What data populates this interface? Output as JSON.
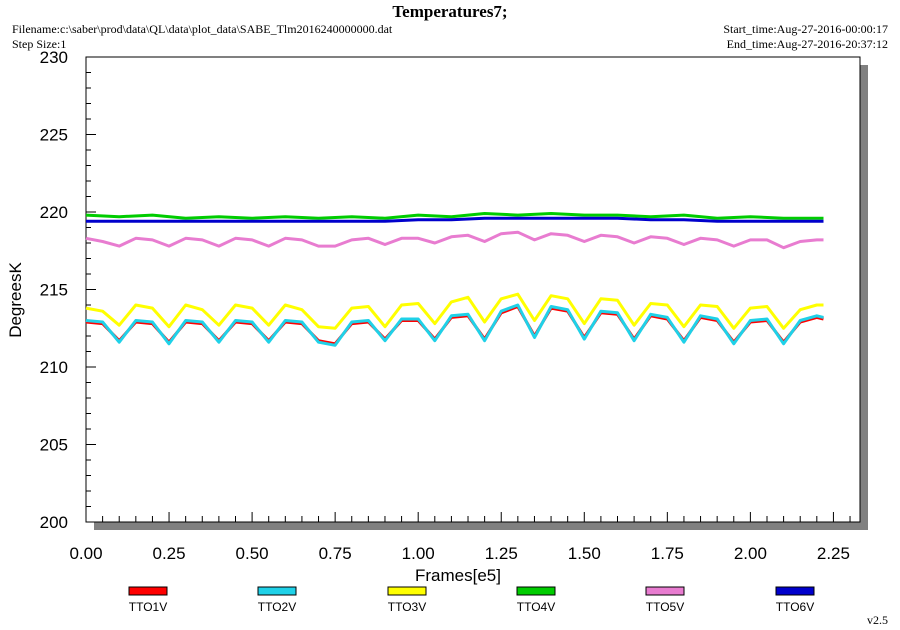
{
  "header": {
    "title": "Temperatures7;",
    "filename": "Filename:c:\\saber\\prod\\data\\QL\\data\\plot_data\\SABE_Tlm2016240000000.dat",
    "step_size": "Step Size:1",
    "start_time": "Start_time:Aug-27-2016-00:00:17",
    "end_time": "End_time:Aug-27-2016-20:37:12"
  },
  "version": "v2.5",
  "chart_data": {
    "type": "line",
    "title": "Temperatures7;",
    "xlabel": "Frames[e5]",
    "ylabel": "DegreesK",
    "xlim": [
      0,
      2.33
    ],
    "ylim": [
      200,
      230
    ],
    "x_ticks": [
      "0.00",
      "0.25",
      "0.50",
      "0.75",
      "1.00",
      "1.25",
      "1.50",
      "1.75",
      "2.00",
      "2.25"
    ],
    "y_ticks": [
      "200",
      "205",
      "210",
      "215",
      "220",
      "225",
      "230"
    ],
    "grid": false,
    "legend_position": "bottom",
    "colors": {
      "background": "#ffffff",
      "plot_background": "#ffffff",
      "shadow": "#808080"
    },
    "series": [
      {
        "name": "TTO1V",
        "color": "#ff0000",
        "x": [
          0.0,
          0.05,
          0.1,
          0.15,
          0.2,
          0.25,
          0.3,
          0.35,
          0.4,
          0.45,
          0.5,
          0.55,
          0.6,
          0.65,
          0.7,
          0.75,
          0.8,
          0.85,
          0.9,
          0.95,
          1.0,
          1.05,
          1.1,
          1.15,
          1.2,
          1.25,
          1.3,
          1.35,
          1.4,
          1.45,
          1.5,
          1.55,
          1.6,
          1.65,
          1.7,
          1.75,
          1.8,
          1.85,
          1.9,
          1.95,
          2.0,
          2.05,
          2.1,
          2.15,
          2.2,
          2.22
        ],
        "values": [
          212.9,
          212.8,
          211.7,
          212.9,
          212.8,
          211.6,
          212.9,
          212.8,
          211.7,
          212.9,
          212.8,
          211.7,
          212.9,
          212.8,
          211.7,
          211.5,
          212.8,
          212.9,
          211.8,
          213.0,
          213.0,
          211.8,
          213.2,
          213.3,
          211.8,
          213.5,
          213.9,
          212.0,
          213.8,
          213.6,
          211.9,
          213.5,
          213.4,
          211.8,
          213.3,
          213.1,
          211.7,
          213.2,
          213.0,
          211.6,
          212.9,
          213.0,
          211.6,
          212.9,
          213.2,
          213.1
        ]
      },
      {
        "name": "TTO2V",
        "color": "#1fd1e8",
        "x": [
          0.0,
          0.05,
          0.1,
          0.15,
          0.2,
          0.25,
          0.3,
          0.35,
          0.4,
          0.45,
          0.5,
          0.55,
          0.6,
          0.65,
          0.7,
          0.75,
          0.8,
          0.85,
          0.9,
          0.95,
          1.0,
          1.05,
          1.1,
          1.15,
          1.2,
          1.25,
          1.3,
          1.35,
          1.4,
          1.45,
          1.5,
          1.55,
          1.6,
          1.65,
          1.7,
          1.75,
          1.8,
          1.85,
          1.9,
          1.95,
          2.0,
          2.05,
          2.1,
          2.15,
          2.2,
          2.22
        ],
        "values": [
          213.0,
          212.9,
          211.6,
          213.0,
          212.9,
          211.5,
          213.0,
          212.9,
          211.6,
          213.0,
          212.9,
          211.6,
          213.0,
          212.9,
          211.6,
          211.4,
          212.9,
          213.0,
          211.7,
          213.1,
          213.1,
          211.7,
          213.3,
          213.4,
          211.7,
          213.6,
          214.0,
          211.9,
          213.9,
          213.7,
          211.8,
          213.6,
          213.5,
          211.7,
          213.4,
          213.2,
          211.6,
          213.3,
          213.1,
          211.5,
          213.0,
          213.1,
          211.5,
          213.0,
          213.3,
          213.2
        ]
      },
      {
        "name": "TTO3V",
        "color": "#ffff00",
        "x": [
          0.0,
          0.05,
          0.1,
          0.15,
          0.2,
          0.25,
          0.3,
          0.35,
          0.4,
          0.45,
          0.5,
          0.55,
          0.6,
          0.65,
          0.7,
          0.75,
          0.8,
          0.85,
          0.9,
          0.95,
          1.0,
          1.05,
          1.1,
          1.15,
          1.2,
          1.25,
          1.3,
          1.35,
          1.4,
          1.45,
          1.5,
          1.55,
          1.6,
          1.65,
          1.7,
          1.75,
          1.8,
          1.85,
          1.9,
          1.95,
          2.0,
          2.05,
          2.1,
          2.15,
          2.2,
          2.22
        ],
        "values": [
          213.8,
          213.6,
          212.7,
          214.0,
          213.8,
          212.6,
          214.0,
          213.7,
          212.7,
          214.0,
          213.8,
          212.7,
          214.0,
          213.7,
          212.6,
          212.5,
          213.8,
          213.9,
          212.6,
          214.0,
          214.1,
          212.8,
          214.2,
          214.5,
          212.9,
          214.4,
          214.7,
          213.0,
          214.6,
          214.4,
          212.8,
          214.4,
          214.3,
          212.7,
          214.1,
          214.0,
          212.6,
          214.0,
          213.9,
          212.5,
          213.8,
          213.9,
          212.5,
          213.7,
          214.0,
          214.0
        ]
      },
      {
        "name": "TTO4V",
        "color": "#00cc00",
        "x": [
          0.0,
          0.1,
          0.2,
          0.3,
          0.4,
          0.5,
          0.6,
          0.7,
          0.8,
          0.9,
          1.0,
          1.1,
          1.2,
          1.3,
          1.4,
          1.5,
          1.6,
          1.7,
          1.8,
          1.9,
          2.0,
          2.1,
          2.22
        ],
        "values": [
          219.8,
          219.7,
          219.8,
          219.6,
          219.7,
          219.6,
          219.7,
          219.6,
          219.7,
          219.6,
          219.8,
          219.7,
          219.9,
          219.8,
          219.9,
          219.8,
          219.8,
          219.7,
          219.8,
          219.6,
          219.7,
          219.6,
          219.6
        ]
      },
      {
        "name": "TTO5V",
        "color": "#e87cd0",
        "x": [
          0.0,
          0.05,
          0.1,
          0.15,
          0.2,
          0.25,
          0.3,
          0.35,
          0.4,
          0.45,
          0.5,
          0.55,
          0.6,
          0.65,
          0.7,
          0.75,
          0.8,
          0.85,
          0.9,
          0.95,
          1.0,
          1.05,
          1.1,
          1.15,
          1.2,
          1.25,
          1.3,
          1.35,
          1.4,
          1.45,
          1.5,
          1.55,
          1.6,
          1.65,
          1.7,
          1.75,
          1.8,
          1.85,
          1.9,
          1.95,
          2.0,
          2.05,
          2.1,
          2.15,
          2.2,
          2.22
        ],
        "values": [
          218.3,
          218.1,
          217.8,
          218.3,
          218.2,
          217.8,
          218.3,
          218.2,
          217.8,
          218.3,
          218.2,
          217.8,
          218.3,
          218.2,
          217.8,
          217.8,
          218.2,
          218.3,
          217.9,
          218.3,
          218.3,
          218.0,
          218.4,
          218.5,
          218.1,
          218.6,
          218.7,
          218.2,
          218.6,
          218.5,
          218.1,
          218.5,
          218.4,
          218.0,
          218.4,
          218.3,
          217.9,
          218.3,
          218.2,
          217.8,
          218.2,
          218.2,
          217.7,
          218.1,
          218.2,
          218.2
        ]
      },
      {
        "name": "TTO6V",
        "color": "#0000cc",
        "x": [
          0.0,
          0.1,
          0.2,
          0.3,
          0.4,
          0.5,
          0.6,
          0.7,
          0.8,
          0.9,
          1.0,
          1.1,
          1.2,
          1.3,
          1.4,
          1.5,
          1.6,
          1.7,
          1.8,
          1.9,
          2.0,
          2.1,
          2.22
        ],
        "values": [
          219.4,
          219.4,
          219.4,
          219.4,
          219.4,
          219.4,
          219.4,
          219.4,
          219.4,
          219.4,
          219.5,
          219.5,
          219.6,
          219.6,
          219.6,
          219.6,
          219.6,
          219.5,
          219.5,
          219.4,
          219.4,
          219.4,
          219.4
        ]
      }
    ]
  }
}
